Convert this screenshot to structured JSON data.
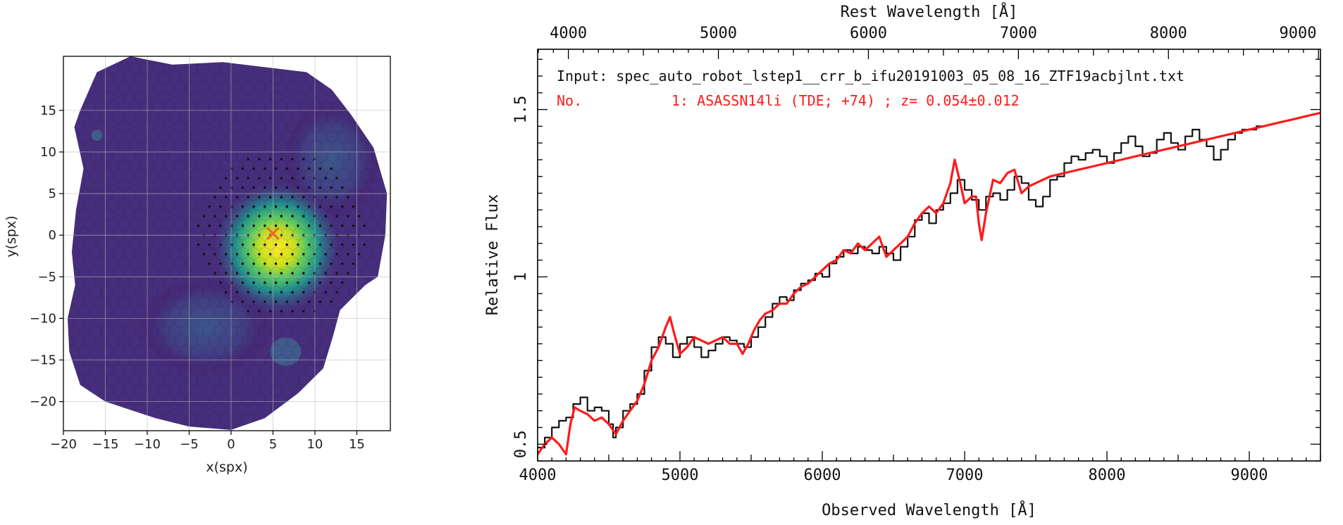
{
  "colors": {
    "viridis": [
      "#440154",
      "#3b528b",
      "#21908d",
      "#5dc962",
      "#fde725"
    ],
    "marker": "#f06a1c",
    "observed_line": "#111111",
    "model_line": "#ff1a1a",
    "annotation_red": "#ff1a1a"
  },
  "chart_data": [
    {
      "type": "heatmap",
      "title": "",
      "xlabel": "x(spx)",
      "ylabel": "y(spx)",
      "xlim": [
        -20,
        19
      ],
      "ylim": [
        -23.5,
        21.5
      ],
      "xticks": [
        "−20",
        "−15",
        "−10",
        "−5",
        "0",
        "5",
        "10",
        "15"
      ],
      "xtick_values": [
        -20,
        -15,
        -10,
        -5,
        0,
        5,
        10,
        15
      ],
      "yticks": [
        "15",
        "10",
        "5",
        "0",
        "−5",
        "−10",
        "−15",
        "−20"
      ],
      "ytick_values": [
        15,
        10,
        5,
        0,
        -5,
        -10,
        -15,
        -20
      ],
      "grid": true,
      "colormap": "viridis",
      "peak": {
        "x": 5.5,
        "y": -1.5
      },
      "marker": {
        "symbol": "x",
        "x": 5,
        "y": 0.2
      },
      "dotted_region": {
        "center": [
          6,
          0
        ],
        "radius": 10.3
      }
    },
    {
      "type": "line",
      "title": "",
      "xlabel": "Observed Wavelength [Å]",
      "ylabel": "Relative Flux",
      "top_xlabel": "Rest Wavelength [Å]",
      "xlim": [
        4000,
        9500
      ],
      "ylim": [
        0.45,
        1.68
      ],
      "xticks": [
        "4000",
        "5000",
        "6000",
        "7000",
        "8000",
        "9000"
      ],
      "xtick_values": [
        4000,
        5000,
        6000,
        7000,
        8000,
        9000
      ],
      "top_xticks": [
        "4000",
        "5000",
        "6000",
        "7000",
        "8000",
        "9000"
      ],
      "top_xtick_values": [
        4000,
        5000,
        6000,
        7000,
        8000,
        9000
      ],
      "top_axis_redshift": 0.054,
      "yticks": [
        "0.5",
        "1",
        "1.5"
      ],
      "ytick_values": [
        0.5,
        1.0,
        1.5
      ],
      "grid": false,
      "annotation_input": "Input: spec_auto_robot_lstep1__crr_b_ifu20191003_05_08_16_ZTF19acbjlnt.txt",
      "annotation_match_prefix": "No.",
      "annotation_match": "1: ASASSN14li (TDE; +74) ; z= 0.054±0.012",
      "series": [
        {
          "x": [
            4000,
            4050,
            4100,
            4150,
            4200,
            4250,
            4300,
            4350,
            4400,
            4450,
            4500,
            4530,
            4550,
            4600,
            4650,
            4700,
            4750,
            4800,
            4850,
            4900,
            4950,
            5000,
            5050,
            5100,
            5150,
            5200,
            5250,
            5300,
            5350,
            5400,
            5450,
            5500,
            5550,
            5600,
            5650,
            5700,
            5750,
            5800,
            5850,
            5900,
            5950,
            6000,
            6050,
            6100,
            6150,
            6200,
            6250,
            6300,
            6350,
            6400,
            6450,
            6500,
            6550,
            6600,
            6650,
            6700,
            6750,
            6800,
            6850,
            6900,
            6950,
            7000,
            7050,
            7100,
            7150,
            7200,
            7250,
            7300,
            7350,
            7400,
            7450,
            7500,
            7550,
            7600,
            7650,
            7700,
            7750,
            7800,
            7850,
            7900,
            7950,
            8000,
            8050,
            8100,
            8150,
            8200,
            8250,
            8300,
            8350,
            8400,
            8450,
            8500,
            8550,
            8600,
            8650,
            8700,
            8750,
            8800,
            8850,
            8900,
            8950,
            9000,
            9050,
            9100
          ],
          "values": [
            0.49,
            0.52,
            0.55,
            0.57,
            0.58,
            0.62,
            0.64,
            0.6,
            0.61,
            0.6,
            0.56,
            0.52,
            0.55,
            0.6,
            0.62,
            0.65,
            0.72,
            0.79,
            0.82,
            0.8,
            0.76,
            0.8,
            0.82,
            0.79,
            0.76,
            0.78,
            0.8,
            0.82,
            0.81,
            0.8,
            0.79,
            0.82,
            0.85,
            0.88,
            0.92,
            0.94,
            0.93,
            0.96,
            0.98,
            0.99,
            1.01,
            1.0,
            1.04,
            1.06,
            1.08,
            1.07,
            1.09,
            1.08,
            1.07,
            1.09,
            1.07,
            1.05,
            1.09,
            1.12,
            1.17,
            1.19,
            1.16,
            1.2,
            1.22,
            1.25,
            1.29,
            1.26,
            1.23,
            1.2,
            1.24,
            1.25,
            1.23,
            1.26,
            1.3,
            1.28,
            1.23,
            1.21,
            1.24,
            1.29,
            1.3,
            1.34,
            1.36,
            1.35,
            1.37,
            1.38,
            1.36,
            1.34,
            1.37,
            1.4,
            1.42,
            1.39,
            1.36,
            1.37,
            1.41,
            1.43,
            1.4,
            1.38,
            1.42,
            1.44,
            1.41,
            1.39,
            1.35,
            1.38,
            1.41,
            1.43,
            1.44,
            1.44,
            1.45,
            1.45
          ]
        },
        {
          "x": [
            4000,
            4050,
            4100,
            4150,
            4200,
            4230,
            4260,
            4300,
            4350,
            4400,
            4450,
            4500,
            4550,
            4600,
            4650,
            4700,
            4750,
            4800,
            4850,
            4900,
            4930,
            4960,
            5000,
            5050,
            5100,
            5150,
            5200,
            5250,
            5300,
            5350,
            5400,
            5440,
            5480,
            5520,
            5560,
            5600,
            5650,
            5700,
            5750,
            5800,
            5850,
            5900,
            5950,
            6000,
            6050,
            6100,
            6150,
            6200,
            6250,
            6300,
            6350,
            6400,
            6450,
            6500,
            6550,
            6600,
            6650,
            6700,
            6750,
            6800,
            6850,
            6900,
            6930,
            6970,
            7000,
            7050,
            7080,
            7100,
            7120,
            7150,
            7200,
            7250,
            7300,
            7350,
            7400,
            7450,
            7500,
            7550,
            7600,
            7700,
            7800,
            7900,
            8000,
            8100,
            8200,
            8300,
            8400,
            8500,
            8600,
            8700,
            8800,
            8900,
            9000,
            9100,
            9200,
            9300,
            9400,
            9500
          ],
          "values": [
            0.47,
            0.5,
            0.52,
            0.5,
            0.47,
            0.56,
            0.61,
            0.6,
            0.59,
            0.57,
            0.58,
            0.56,
            0.53,
            0.57,
            0.6,
            0.63,
            0.68,
            0.75,
            0.79,
            0.85,
            0.88,
            0.83,
            0.77,
            0.79,
            0.82,
            0.81,
            0.8,
            0.81,
            0.82,
            0.8,
            0.8,
            0.77,
            0.8,
            0.84,
            0.87,
            0.89,
            0.9,
            0.92,
            0.92,
            0.95,
            0.97,
            0.98,
            1.0,
            1.02,
            1.04,
            1.05,
            1.08,
            1.07,
            1.1,
            1.08,
            1.1,
            1.12,
            1.06,
            1.08,
            1.1,
            1.12,
            1.16,
            1.19,
            1.21,
            1.19,
            1.22,
            1.28,
            1.35,
            1.28,
            1.22,
            1.24,
            1.24,
            1.16,
            1.11,
            1.19,
            1.29,
            1.28,
            1.31,
            1.32,
            1.25,
            1.27,
            1.28,
            1.29,
            1.3,
            1.31,
            1.32,
            1.33,
            1.34,
            1.35,
            1.36,
            1.37,
            1.38,
            1.39,
            1.4,
            1.41,
            1.42,
            1.43,
            1.44,
            1.45,
            1.46,
            1.47,
            1.48,
            1.49
          ]
        }
      ]
    }
  ]
}
